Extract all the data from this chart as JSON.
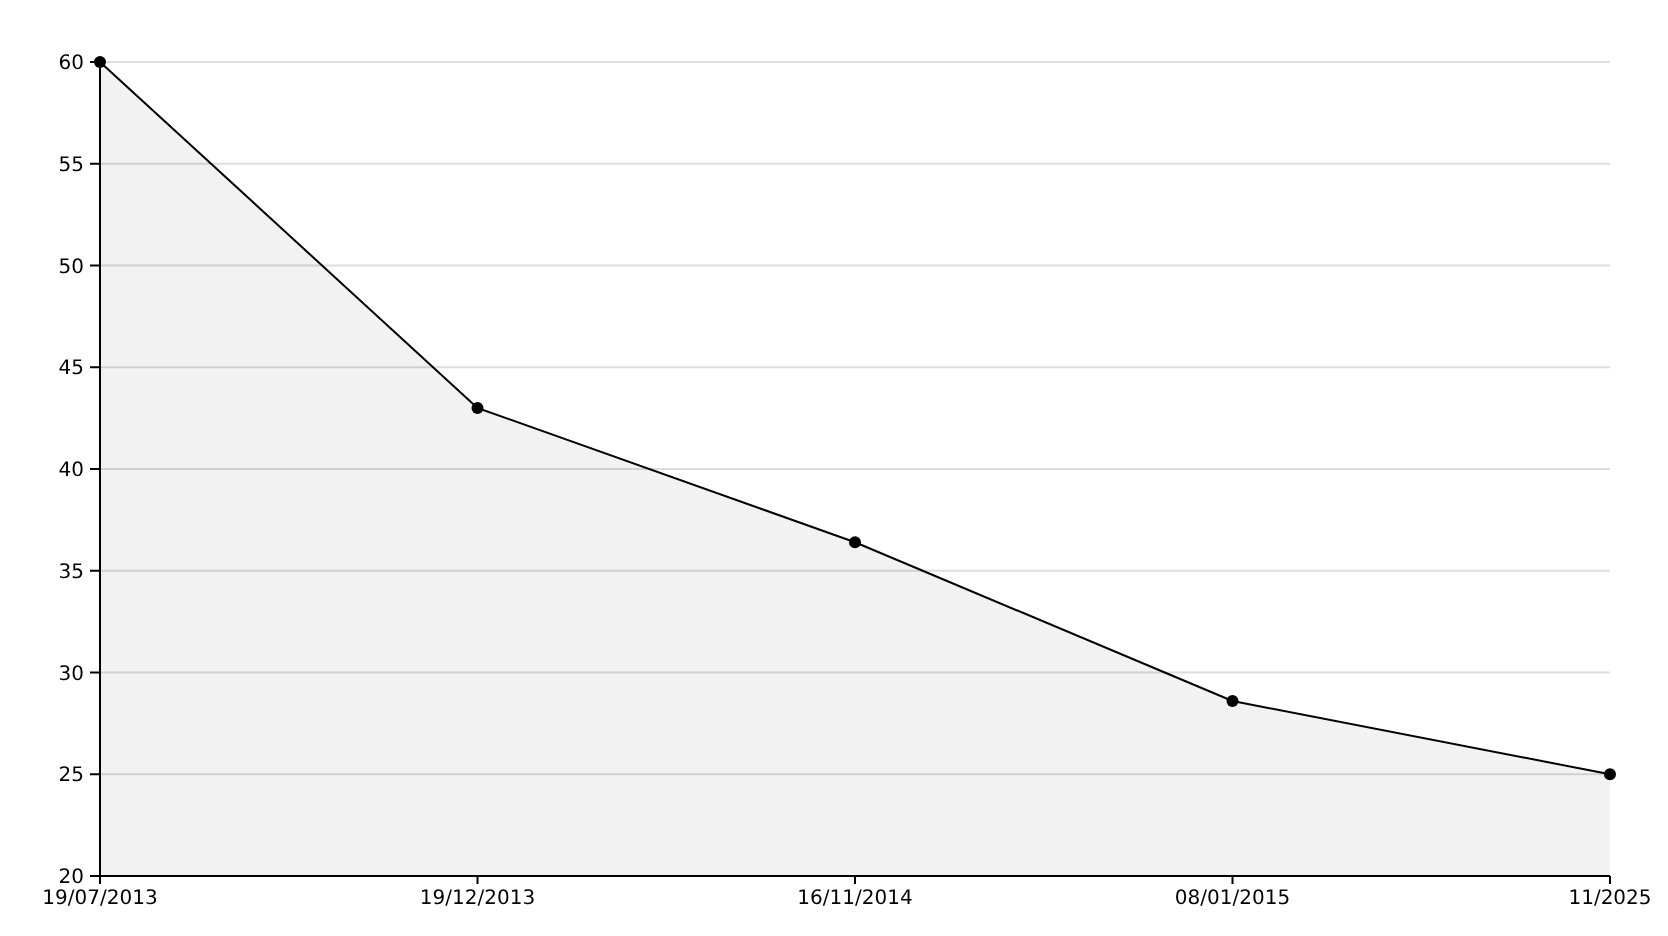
{
  "chart_data": {
    "type": "area",
    "categories": [
      "19/07/2013",
      "19/12/2013",
      "16/11/2014",
      "08/01/2015",
      "11/2025"
    ],
    "series": [
      {
        "color": "#000000",
        "values": [
          60,
          43,
          36.4,
          28.6,
          25
        ]
      }
    ],
    "ylim": [
      20,
      60
    ],
    "yticks": [
      20,
      25,
      30,
      35,
      40,
      45,
      50,
      55,
      60
    ],
    "grid": "y",
    "marker": "circle"
  }
}
